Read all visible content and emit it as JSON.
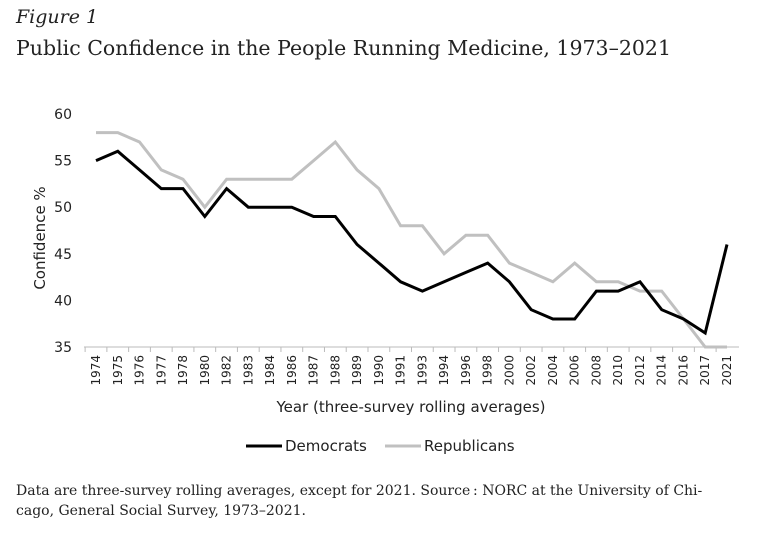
{
  "figure_label": "Figure 1",
  "title": "Public Confidence in the People Running Medicine, 1973–2021",
  "note": {
    "part1": "Data are three-survey rolling averages, except for 2021. Source : ",
    "org": "NORC",
    "part2": " at the University of Chi-",
    "line2": "cago, General Social Survey, 1973–2021."
  },
  "chart_data": {
    "type": "line",
    "categories": [
      "1974",
      "1975",
      "1976",
      "1977",
      "1978",
      "1980",
      "1982",
      "1983",
      "1984",
      "1986",
      "1987",
      "1988",
      "1989",
      "1990",
      "1991",
      "1993",
      "1994",
      "1996",
      "1998",
      "2000",
      "2002",
      "2004",
      "2006",
      "2008",
      "2010",
      "2012",
      "2014",
      "2016",
      "2017",
      "2021"
    ],
    "series": [
      {
        "name": "Democrats",
        "color": "#000000",
        "values": [
          55,
          56,
          54,
          52,
          52,
          49,
          52,
          50,
          50,
          50,
          49,
          49,
          46,
          44,
          42,
          41,
          42,
          43,
          44,
          42,
          39,
          38,
          38,
          41,
          41,
          42,
          39,
          38,
          36.5,
          46
        ]
      },
      {
        "name": "Republicans",
        "color": "#c0c0c0",
        "values": [
          58,
          58,
          57,
          54,
          53,
          50,
          53,
          53,
          53,
          53,
          55,
          57,
          54,
          52,
          48,
          48,
          45,
          47,
          47,
          44,
          43,
          42,
          44,
          42,
          42,
          41,
          41,
          38,
          35,
          35
        ]
      }
    ],
    "xlabel": "Year (three-survey rolling averages)",
    "ylabel": "Confidence %",
    "ylim": [
      35,
      60
    ],
    "yticks": [
      35,
      40,
      45,
      50,
      55,
      60
    ],
    "legend_position": "bottom",
    "grid": false
  }
}
